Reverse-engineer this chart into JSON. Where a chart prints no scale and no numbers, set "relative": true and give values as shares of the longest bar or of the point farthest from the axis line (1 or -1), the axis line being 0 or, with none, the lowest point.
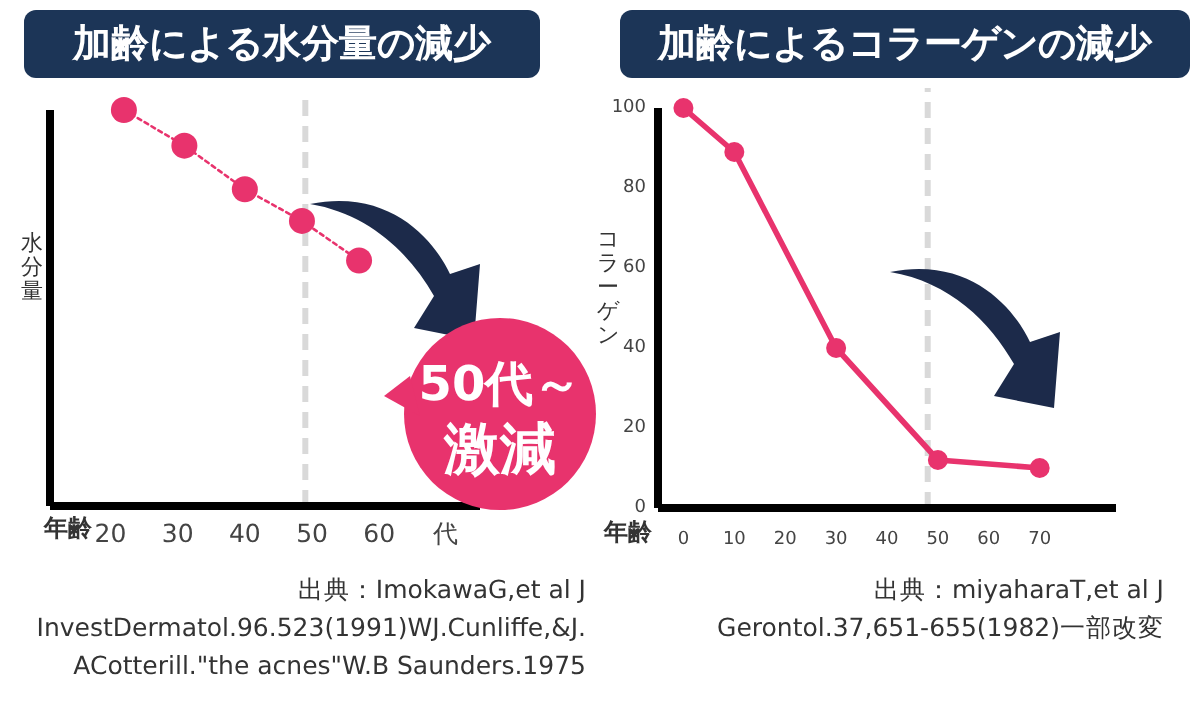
{
  "chart_data": [
    {
      "type": "line",
      "title": "加齢による水分量の減少",
      "xlabel": "年齢",
      "ylabel": "水分量",
      "relative": true,
      "x": [
        22,
        31,
        40,
        48.5,
        57
      ],
      "series": [
        {
          "color": "#e8336d",
          "values": [
            1,
            0.91,
            0.8,
            0.72,
            0.62
          ]
        }
      ],
      "xlim": [
        11,
        75
      ],
      "xticks": [
        20,
        30,
        40,
        50,
        60,
        {
          "value": 70,
          "label": "代"
        }
      ],
      "tick_labels": "x",
      "marker": "circle",
      "line_style": "dotted",
      "ref_lines": [
        {
          "axis": "x",
          "value": 49,
          "color": "#d9d9d9",
          "line_style": "dashed"
        }
      ],
      "annotations": [
        "50代～",
        "激減",
        "出典：ImokawaG,et al J InvestDermatol.96.523(1991)WJ.Cunliffe,&J. ACotterill.\"the acnes\"W.B Saunders.1975"
      ]
    },
    {
      "type": "line",
      "title": "加齢によるコラーゲンの減少",
      "xlabel": "年齢",
      "ylabel": "コラーゲン",
      "x": [
        0,
        10,
        30,
        50,
        70
      ],
      "series": [
        {
          "color": "#e8336d",
          "values": [
            100,
            89,
            40,
            12,
            10
          ]
        }
      ],
      "xlim": [
        -5,
        85
      ],
      "xticks": [
        0,
        10,
        20,
        30,
        40,
        50,
        60,
        70
      ],
      "ylim": [
        0,
        100
      ],
      "yticks": [
        0,
        20,
        40,
        60,
        80,
        100
      ],
      "marker": "circle",
      "line_style": "solid",
      "ref_lines": [
        {
          "axis": "x",
          "value": 48,
          "color": "#d9d9d9",
          "line_style": "dashed"
        }
      ],
      "annotations": [
        "出典：miyaharaT,et al J Gerontol.37,651-655(1982)一部改変"
      ]
    }
  ]
}
